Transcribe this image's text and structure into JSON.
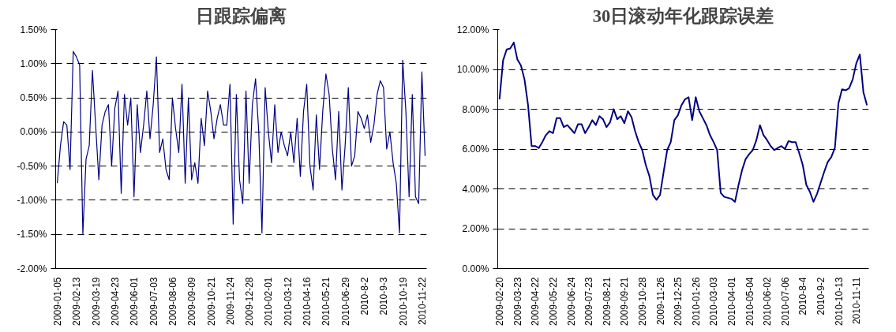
{
  "chart_data": [
    {
      "type": "line",
      "title": "日跟踪偏离",
      "color": "#000080",
      "grid": "y",
      "categories": [
        "2009-01-05",
        null,
        null,
        null,
        null,
        null,
        "2009-02-13",
        null,
        null,
        null,
        null,
        null,
        "2009-03-19",
        null,
        null,
        null,
        null,
        null,
        "2009-04-23",
        null,
        null,
        null,
        null,
        null,
        "2009-06-01",
        null,
        null,
        null,
        null,
        null,
        "2009-07-03",
        null,
        null,
        null,
        null,
        null,
        "2009-08-06",
        null,
        null,
        null,
        null,
        null,
        "2009-09-09",
        null,
        null,
        null,
        null,
        null,
        "2009-10-21",
        null,
        null,
        null,
        null,
        null,
        "2009-11-24",
        null,
        null,
        null,
        null,
        null,
        "2009-12-28",
        null,
        null,
        null,
        null,
        null,
        "2010-02-01",
        null,
        null,
        null,
        null,
        null,
        "2010-03-12",
        null,
        null,
        null,
        null,
        null,
        "2010-04-16",
        null,
        null,
        null,
        null,
        null,
        "2010-05-21",
        null,
        null,
        null,
        null,
        null,
        "2010-06-29",
        null,
        null,
        null,
        null,
        null,
        "2010-8-2",
        null,
        null,
        null,
        null,
        null,
        "2010-9-3",
        null,
        null,
        null,
        null,
        null,
        "2010-10-19",
        null,
        null,
        null,
        null,
        null,
        "2010-11-22",
        null
      ],
      "values": [
        -0.75,
        -0.2,
        0.15,
        0.1,
        -0.55,
        1.18,
        1.1,
        0.98,
        -1.5,
        -0.4,
        -0.2,
        0.9,
        0.1,
        -0.7,
        0.1,
        0.3,
        0.4,
        -0.5,
        0.35,
        0.6,
        -0.9,
        0.55,
        0.1,
        0.5,
        -0.95,
        0.4,
        -0.3,
        0.1,
        0.6,
        -0.1,
        0.4,
        1.1,
        -0.3,
        -0.1,
        -0.55,
        -0.7,
        0.5,
        0.05,
        -0.3,
        0.7,
        -0.75,
        0.5,
        -0.7,
        -0.45,
        -0.75,
        0.2,
        -0.2,
        0.6,
        0.3,
        -0.1,
        0.2,
        0.4,
        0.1,
        0.1,
        0.7,
        -1.35,
        0.55,
        -0.7,
        -1.05,
        0.6,
        -0.75,
        0.4,
        0.78,
        0.0,
        -1.48,
        0.65,
        0.0,
        -0.45,
        0.4,
        -0.3,
        0.0,
        -0.2,
        -0.35,
        0.0,
        -0.45,
        0.2,
        -0.65,
        0.3,
        0.7,
        -0.5,
        -0.85,
        0.25,
        -0.55,
        0.3,
        0.85,
        0.55,
        -0.25,
        -0.7,
        0.3,
        -0.85,
        -0.2,
        0.65,
        -0.5,
        -0.35,
        0.3,
        0.2,
        0.05,
        0.25,
        -0.15,
        0.1,
        0.55,
        0.75,
        0.65,
        -0.25,
        0.0,
        -0.45,
        -0.75,
        -1.48,
        1.05,
        0.3,
        -0.95,
        0.55,
        -0.95,
        -1.05,
        0.88,
        -0.35
      ],
      "ylim": [
        -2.0,
        1.5
      ],
      "yticks": [
        {
          "value": -2.0,
          "label": "-2.00%"
        },
        {
          "value": -1.5,
          "label": "-1.50%"
        },
        {
          "value": -1.0,
          "label": "-1.00%"
        },
        {
          "value": -0.5,
          "label": "-0.50%"
        },
        {
          "value": 0.0,
          "label": "0.00%"
        },
        {
          "value": 0.5,
          "label": "0.50%"
        },
        {
          "value": 1.0,
          "label": "1.00%"
        },
        {
          "value": 1.5,
          "label": "1.50%"
        }
      ]
    },
    {
      "type": "line",
      "title": "30日滚动年化跟踪误差",
      "color": "#000080",
      "grid": "y",
      "categories": [
        "2009-02-20",
        null,
        null,
        null,
        null,
        "2009-03-23",
        null,
        null,
        null,
        null,
        "2009-04-22",
        null,
        null,
        null,
        null,
        "2009-05-22",
        null,
        null,
        null,
        null,
        "2009-06-24",
        null,
        null,
        null,
        null,
        "2009-07-23",
        null,
        null,
        null,
        null,
        "2009-08-21",
        null,
        null,
        null,
        null,
        "2009-09-21",
        null,
        null,
        null,
        null,
        "2009-10-28",
        null,
        null,
        null,
        null,
        "2009-11-26",
        null,
        null,
        null,
        null,
        "2009-12-25",
        null,
        null,
        null,
        null,
        "2010-01-26",
        null,
        null,
        null,
        null,
        "2010-03-03",
        null,
        null,
        null,
        null,
        "2010-04-01",
        null,
        null,
        null,
        null,
        "2010-05-04",
        null,
        null,
        null,
        null,
        "2010-06-02",
        null,
        null,
        null,
        null,
        "2010-07-06",
        null,
        null,
        null,
        null,
        "2010-8-4",
        null,
        null,
        null,
        null,
        "2010-9-2",
        null,
        null,
        null,
        null,
        "2010-10-13",
        null,
        null,
        null,
        null,
        "2010-11-11",
        null,
        null,
        null
      ],
      "values": [
        8.5,
        10.45,
        11.0,
        11.05,
        11.35,
        10.5,
        10.2,
        9.5,
        8.2,
        6.15,
        6.15,
        6.05,
        6.35,
        6.7,
        6.9,
        6.8,
        7.55,
        7.55,
        7.1,
        7.2,
        7.0,
        6.8,
        7.25,
        7.25,
        6.8,
        7.1,
        7.45,
        7.2,
        7.65,
        7.5,
        7.1,
        7.35,
        8.0,
        7.5,
        7.65,
        7.3,
        7.9,
        7.6,
        6.9,
        6.35,
        5.95,
        5.2,
        4.65,
        3.7,
        3.45,
        3.7,
        4.85,
        5.95,
        6.35,
        7.45,
        7.7,
        8.2,
        8.5,
        8.6,
        7.45,
        8.6,
        7.9,
        7.55,
        7.2,
        6.7,
        6.35,
        5.95,
        3.8,
        3.6,
        3.55,
        3.5,
        3.35,
        4.2,
        4.95,
        5.5,
        5.75,
        5.95,
        6.45,
        7.2,
        6.7,
        6.45,
        6.15,
        5.95,
        6.05,
        6.15,
        6.0,
        6.4,
        6.35,
        6.35,
        5.8,
        5.2,
        4.2,
        3.85,
        3.35,
        3.75,
        4.3,
        4.85,
        5.35,
        5.6,
        6.05,
        8.3,
        9.0,
        8.95,
        9.05,
        9.5,
        10.3,
        10.75,
        8.85,
        8.2
      ],
      "ylim": [
        0,
        12
      ],
      "yticks": [
        {
          "value": 0,
          "label": "0.00%"
        },
        {
          "value": 2,
          "label": "2.00%"
        },
        {
          "value": 4,
          "label": "4.00%"
        },
        {
          "value": 6,
          "label": "6.00%"
        },
        {
          "value": 8,
          "label": "8.00%"
        },
        {
          "value": 10,
          "label": "10.00%"
        },
        {
          "value": 12,
          "label": "12.00%"
        }
      ]
    }
  ]
}
